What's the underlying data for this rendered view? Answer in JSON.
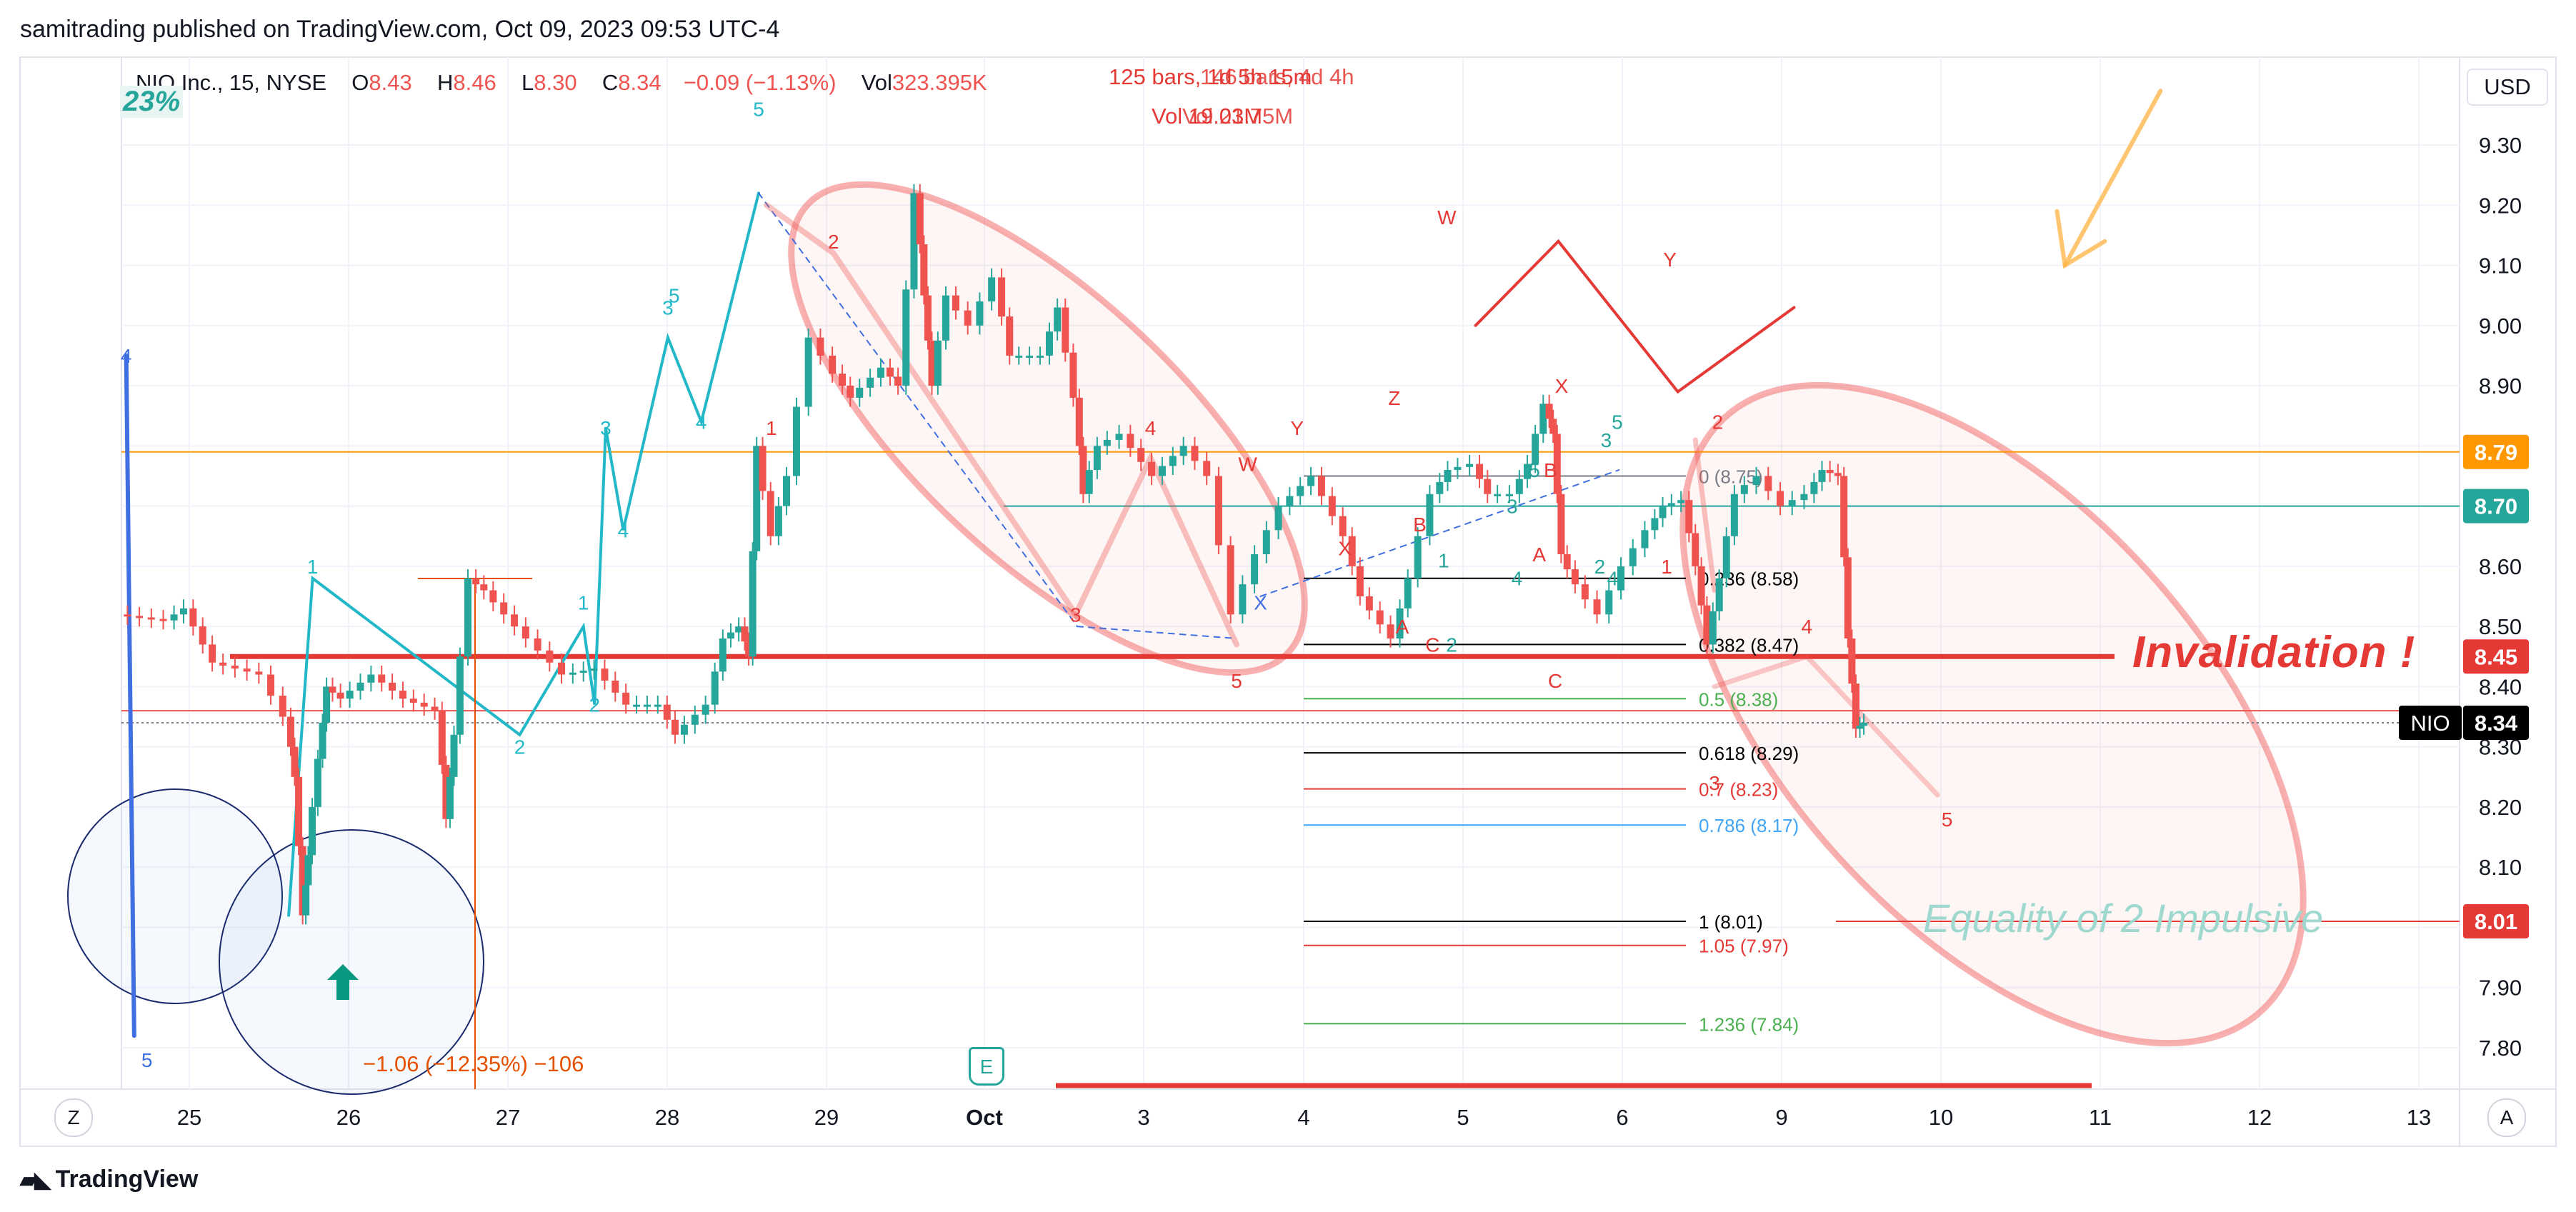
{
  "header": {
    "published": "samitrading published on TradingView.com, Oct 09, 2023 09:53 UTC-4",
    "brand": "TradingView"
  },
  "legend": {
    "symbol": "NIO Inc., 15, NYSE",
    "o_label": "O",
    "o_value": "8.43",
    "h_label": "H",
    "h_value": "8.46",
    "l_label": "L",
    "l_value": "8.30",
    "c_label": "C",
    "c_value": "8.34",
    "change": "−0.09 (−1.13%)",
    "vol_label": "Vol",
    "vol_value": "323.395K",
    "corner_pct": "23%"
  },
  "range_info": {
    "line1": "125 bars, 1d 5h 15m",
    "line1_overlap": "146 bars, 4d 4h",
    "line2": "Vol 19.03M",
    "line2_overlap": "Vol 21.75M"
  },
  "measure_label": "−1.06 (−12.35%) −106",
  "annotations": {
    "invalidation": "Invalidation !",
    "equality": "Equality of 2 Impulsive"
  },
  "buttons": {
    "zoom": "Z",
    "auto": "A",
    "currency": "USD",
    "event": "E"
  },
  "colors": {
    "up": "#26a69a",
    "down": "#ef5350",
    "wave_teal": "#22b8c8",
    "wave_red": "#e53935",
    "orange": "#ff9800",
    "blue": "#3f6fe0"
  },
  "price_badges": [
    {
      "text": "8.79",
      "value": 8.79,
      "bg": "#ff9800",
      "fg": "#ffffff"
    },
    {
      "text": "8.70",
      "value": 8.7,
      "bg": "#26a69a",
      "fg": "#ffffff"
    },
    {
      "text": "8.45",
      "value": 8.45,
      "bg": "#e53935",
      "fg": "#ffffff"
    },
    {
      "text": "8.34",
      "value": 8.34,
      "bg": "#000000",
      "fg": "#ffffff",
      "prefix": "NIO"
    },
    {
      "text": "8.01",
      "value": 8.01,
      "bg": "#e53935",
      "fg": "#ffffff"
    }
  ],
  "fib_levels": [
    {
      "label": "0 (8.75)",
      "value": 8.75,
      "color": "#787b86"
    },
    {
      "label": "0.236 (8.58)",
      "value": 8.58,
      "color": "#000000"
    },
    {
      "label": "0.382 (8.47)",
      "value": 8.47,
      "color": "#000000"
    },
    {
      "label": "0.5 (8.38)",
      "value": 8.38,
      "color": "#4caf50"
    },
    {
      "label": "0.618 (8.29)",
      "value": 8.29,
      "color": "#000000"
    },
    {
      "label": "0.7 (8.23)",
      "value": 8.23,
      "color": "#e53935"
    },
    {
      "label": "0.786 (8.17)",
      "value": 8.17,
      "color": "#42a5f5"
    },
    {
      "label": "1 (8.01)",
      "value": 8.01,
      "color": "#000000"
    },
    {
      "label": "1.05 (7.97)",
      "value": 7.97,
      "color": "#e53935"
    },
    {
      "label": "1.236 (7.84)",
      "value": 7.84,
      "color": "#4caf50"
    }
  ],
  "wave_labels": [
    {
      "t": "4",
      "x": 0.03,
      "y": 8.95,
      "c": "#3f6fe0"
    },
    {
      "t": "5",
      "x": 0.16,
      "y": 7.78,
      "c": "#3f6fe0"
    },
    {
      "t": "1",
      "x": 1.2,
      "y": 8.6,
      "c": "#22b8c8"
    },
    {
      "t": "2",
      "x": 2.5,
      "y": 8.3,
      "c": "#22b8c8"
    },
    {
      "t": "1",
      "x": 2.9,
      "y": 8.54,
      "c": "#22b8c8"
    },
    {
      "t": "2",
      "x": 2.97,
      "y": 8.37,
      "c": "#22b8c8"
    },
    {
      "t": "3",
      "x": 3.04,
      "y": 8.83,
      "c": "#22b8c8"
    },
    {
      "t": "4",
      "x": 3.15,
      "y": 8.66,
      "c": "#22b8c8"
    },
    {
      "t": "3",
      "x": 3.43,
      "y": 9.03,
      "c": "#22b8c8"
    },
    {
      "t": "5",
      "x": 3.47,
      "y": 9.05,
      "c": "#22b8c8"
    },
    {
      "t": "4",
      "x": 3.64,
      "y": 8.84,
      "c": "#22b8c8"
    },
    {
      "t": "5",
      "x": 4.0,
      "y": 9.36,
      "c": "#22b8c8"
    },
    {
      "t": "1",
      "x": 4.08,
      "y": 8.83,
      "c": "#e53935"
    },
    {
      "t": "2",
      "x": 4.47,
      "y": 9.14,
      "c": "#e53935"
    },
    {
      "t": "3",
      "x": 5.99,
      "y": 8.52,
      "c": "#e53935"
    },
    {
      "t": "4",
      "x": 6.46,
      "y": 8.83,
      "c": "#e53935"
    },
    {
      "t": "5",
      "x": 7.0,
      "y": 8.41,
      "c": "#e53935"
    },
    {
      "t": "X",
      "x": 7.15,
      "y": 8.54,
      "c": "#3f6fe0"
    },
    {
      "t": "W",
      "x": 7.07,
      "y": 8.77,
      "c": "#e53935"
    },
    {
      "t": "Y",
      "x": 7.38,
      "y": 8.83,
      "c": "#e53935"
    },
    {
      "t": "X",
      "x": 7.68,
      "y": 8.63,
      "c": "#e53935"
    },
    {
      "t": "Z",
      "x": 7.99,
      "y": 8.88,
      "c": "#e53935"
    },
    {
      "t": "B",
      "x": 8.15,
      "y": 8.67,
      "c": "#e53935"
    },
    {
      "t": "A",
      "x": 8.04,
      "y": 8.5,
      "c": "#e53935"
    },
    {
      "t": "C",
      "x": 8.23,
      "y": 8.47,
      "c": "#e53935"
    },
    {
      "t": "1",
      "x": 8.3,
      "y": 8.61,
      "c": "#26a69a"
    },
    {
      "t": "2",
      "x": 8.35,
      "y": 8.47,
      "c": "#26a69a"
    },
    {
      "t": "3",
      "x": 8.73,
      "y": 8.7,
      "c": "#26a69a"
    },
    {
      "t": "4",
      "x": 8.76,
      "y": 8.58,
      "c": "#26a69a"
    },
    {
      "t": "5",
      "x": 8.87,
      "y": 8.76,
      "c": "#26a69a"
    },
    {
      "t": "A",
      "x": 8.9,
      "y": 8.62,
      "c": "#e53935"
    },
    {
      "t": "B",
      "x": 8.97,
      "y": 8.76,
      "c": "#e53935"
    },
    {
      "t": "C",
      "x": 9.0,
      "y": 8.41,
      "c": "#e53935"
    },
    {
      "t": "X",
      "x": 9.04,
      "y": 8.9,
      "c": "#e53935"
    },
    {
      "t": "2",
      "x": 9.28,
      "y": 8.6,
      "c": "#26a69a"
    },
    {
      "t": "4",
      "x": 9.36,
      "y": 8.58,
      "c": "#26a69a"
    },
    {
      "t": "3",
      "x": 9.32,
      "y": 8.81,
      "c": "#26a69a"
    },
    {
      "t": "5",
      "x": 9.39,
      "y": 8.84,
      "c": "#26a69a"
    },
    {
      "t": "1",
      "x": 9.7,
      "y": 8.6,
      "c": "#e53935"
    },
    {
      "t": "2",
      "x": 10.02,
      "y": 8.84,
      "c": "#e53935"
    },
    {
      "t": "3",
      "x": 10.0,
      "y": 8.24,
      "c": "#e53935"
    },
    {
      "t": "4",
      "x": 10.58,
      "y": 8.5,
      "c": "#e53935"
    },
    {
      "t": "5",
      "x": 11.46,
      "y": 8.18,
      "c": "#e53935"
    },
    {
      "t": "W",
      "x": 8.32,
      "y": 9.18,
      "c": "#e53935"
    },
    {
      "t": "Y",
      "x": 9.72,
      "y": 9.11,
      "c": "#e53935"
    }
  ],
  "chart_data": {
    "type": "candlestick",
    "title": "NIO Inc., 15, NYSE",
    "y_axis_ticks": [
      "9.30",
      "9.20",
      "9.10",
      "9.00",
      "8.90",
      "8.80",
      "8.70",
      "8.60",
      "8.50",
      "8.40",
      "8.30",
      "8.20",
      "8.10",
      "8.00",
      "7.90",
      "7.80"
    ],
    "y_axis_range": [
      7.77,
      9.38
    ],
    "x_axis_ticks": [
      "25",
      "26",
      "27",
      "28",
      "29",
      "Oct",
      "3",
      "4",
      "5",
      "6",
      "9",
      "10",
      "11",
      "12",
      "13"
    ],
    "price_path": [
      [
        0,
        8.52
      ],
      [
        0.3,
        8.51
      ],
      [
        0.42,
        8.53
      ],
      [
        0.6,
        8.44
      ],
      [
        0.9,
        8.42
      ],
      [
        1.05,
        8.35
      ],
      [
        1.1,
        8.25
      ],
      [
        1.15,
        8.02
      ],
      [
        1.18,
        8.12
      ],
      [
        1.25,
        8.28
      ],
      [
        1.3,
        8.4
      ],
      [
        1.4,
        8.38
      ],
      [
        1.6,
        8.42
      ],
      [
        1.8,
        8.38
      ],
      [
        2.0,
        8.36
      ],
      [
        2.05,
        8.18
      ],
      [
        2.1,
        8.32
      ],
      [
        2.2,
        8.58
      ],
      [
        2.3,
        8.56
      ],
      [
        2.5,
        8.5
      ],
      [
        2.8,
        8.42
      ],
      [
        3.0,
        8.43
      ],
      [
        3.2,
        8.37
      ],
      [
        3.4,
        8.37
      ],
      [
        3.5,
        8.32
      ],
      [
        3.7,
        8.37
      ],
      [
        3.8,
        8.48
      ],
      [
        3.9,
        8.5
      ],
      [
        3.95,
        8.45
      ],
      [
        4.0,
        8.8
      ],
      [
        4.1,
        8.65
      ],
      [
        4.2,
        8.75
      ],
      [
        4.35,
        8.98
      ],
      [
        4.5,
        8.92
      ],
      [
        4.6,
        8.88
      ],
      [
        4.8,
        8.93
      ],
      [
        4.9,
        8.9
      ],
      [
        5.0,
        9.22
      ],
      [
        5.05,
        9.05
      ],
      [
        5.1,
        8.9
      ],
      [
        5.2,
        9.05
      ],
      [
        5.35,
        9.0
      ],
      [
        5.5,
        9.08
      ],
      [
        5.6,
        8.95
      ],
      [
        5.8,
        8.95
      ],
      [
        5.9,
        9.03
      ],
      [
        6.0,
        8.88
      ],
      [
        6.05,
        8.72
      ],
      [
        6.15,
        8.8
      ],
      [
        6.3,
        8.82
      ],
      [
        6.5,
        8.75
      ],
      [
        6.7,
        8.8
      ],
      [
        6.85,
        8.75
      ],
      [
        7.0,
        8.52
      ],
      [
        7.15,
        8.62
      ],
      [
        7.3,
        8.7
      ],
      [
        7.5,
        8.75
      ],
      [
        7.7,
        8.65
      ],
      [
        7.8,
        8.55
      ],
      [
        8.0,
        8.48
      ],
      [
        8.1,
        8.58
      ],
      [
        8.25,
        8.72
      ],
      [
        8.35,
        8.76
      ],
      [
        8.5,
        8.77
      ],
      [
        8.6,
        8.72
      ],
      [
        8.75,
        8.72
      ],
      [
        8.85,
        8.77
      ],
      [
        8.95,
        8.87
      ],
      [
        9.0,
        8.82
      ],
      [
        9.05,
        8.62
      ],
      [
        9.15,
        8.57
      ],
      [
        9.3,
        8.52
      ],
      [
        9.45,
        8.6
      ],
      [
        9.6,
        8.66
      ],
      [
        9.7,
        8.7
      ],
      [
        9.82,
        8.71
      ],
      [
        9.9,
        8.6
      ],
      [
        9.97,
        8.47
      ],
      [
        10.05,
        8.58
      ],
      [
        10.15,
        8.72
      ],
      [
        10.3,
        8.75
      ],
      [
        10.45,
        8.7
      ],
      [
        10.6,
        8.72
      ],
      [
        10.7,
        8.76
      ],
      [
        10.8,
        8.75
      ],
      [
        10.85,
        8.48
      ],
      [
        10.9,
        8.33
      ],
      [
        10.95,
        8.34
      ]
    ],
    "horizontal_levels": [
      {
        "price": 8.79,
        "color": "#ff9800",
        "style": "solid"
      },
      {
        "price": 8.7,
        "color": "#26a69a",
        "style": "solid"
      },
      {
        "price": 8.45,
        "color": "#e53935",
        "style": "thick"
      },
      {
        "price": 8.36,
        "color": "#ef5350",
        "style": "solid"
      },
      {
        "price": 8.34,
        "color": "#787b86",
        "style": "dotted"
      }
    ],
    "last_price": 8.34
  }
}
